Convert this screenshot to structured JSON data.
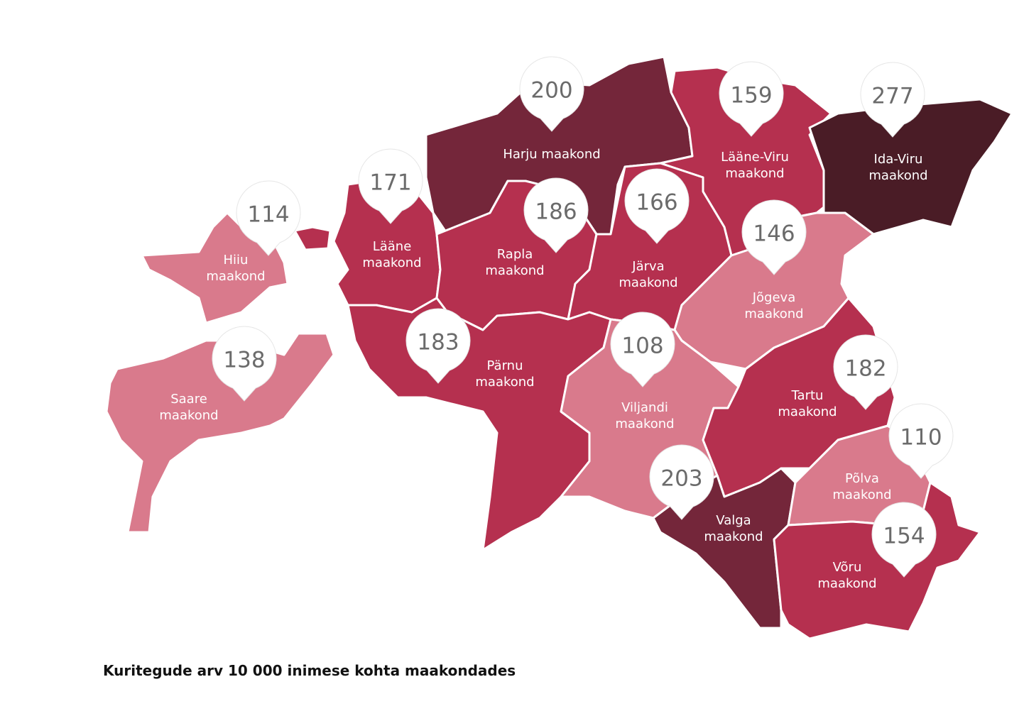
{
  "title": "Kuritegude arv 10 000 inimese kohta maakondades",
  "regions": [
    {
      "name": "Harju maakond",
      "value": 200,
      "color": "#74263a"
    },
    {
      "name": "Lääne-Viru maakond",
      "value": 159,
      "color": "#b5304f"
    },
    {
      "name": "Ida-Viru maakond",
      "value": 277,
      "color": "#4a1c26"
    },
    {
      "name": "Lääne maakond",
      "value": 171,
      "color": "#b5304f"
    },
    {
      "name": "Rapla maakond",
      "value": 186,
      "color": "#b5304f"
    },
    {
      "name": "Järva maakond",
      "value": 166,
      "color": "#b5304f"
    },
    {
      "name": "Jõgeva maakond",
      "value": 146,
      "color": "#d97a8c"
    },
    {
      "name": "Pärnu maakond",
      "value": 183,
      "color": "#b5304f"
    },
    {
      "name": "Viljandi maakond",
      "value": 108,
      "color": "#d97a8c"
    },
    {
      "name": "Tartu maakond",
      "value": 182,
      "color": "#b5304f"
    },
    {
      "name": "Valga maakond",
      "value": 203,
      "color": "#74263a"
    },
    {
      "name": "Põlva maakond",
      "value": 110,
      "color": "#d97a8c"
    },
    {
      "name": "Võru maakond",
      "value": 154,
      "color": "#b5304f"
    },
    {
      "name": "Hiiu maakond",
      "value": 114,
      "color": "#d97a8c"
    },
    {
      "name": "Saare maakond",
      "value": 138,
      "color": "#d97a8c"
    }
  ]
}
